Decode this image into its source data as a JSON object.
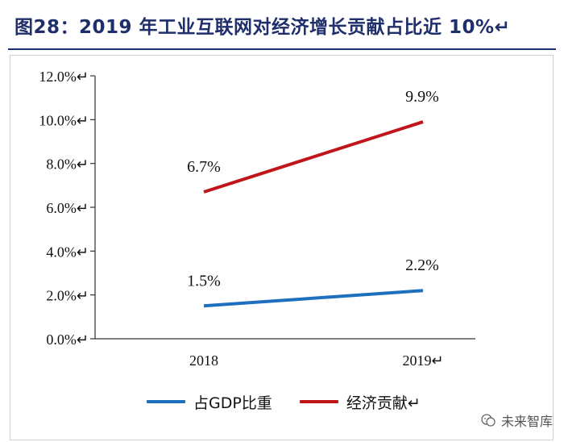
{
  "title": "图28：2019 年工业互联网对经济增长贡献占比近 10%↵",
  "chart_data": {
    "type": "line",
    "title": "图28：2019 年工业互联网对经济增长贡献占比近 10%↵",
    "categories": [
      "2018",
      "2019↵"
    ],
    "ylim": [
      0,
      12
    ],
    "yticks": [
      "0.0%↵",
      "2.0%↵",
      "4.0%↵",
      "6.0%↵",
      "8.0%↵",
      "10.0%↵",
      "12.0%↵"
    ],
    "series": [
      {
        "name": "占GDP比重",
        "color": "#1f6fbf",
        "values": [
          1.5,
          2.2
        ],
        "labels": [
          "1.5%",
          "2.2%"
        ]
      },
      {
        "name": "经济贡献↵",
        "color": "#c0161b",
        "values": [
          6.7,
          9.9
        ],
        "labels": [
          "6.7%",
          "9.9%"
        ]
      }
    ],
    "legend_position": "bottom"
  },
  "watermark": "未来智库"
}
